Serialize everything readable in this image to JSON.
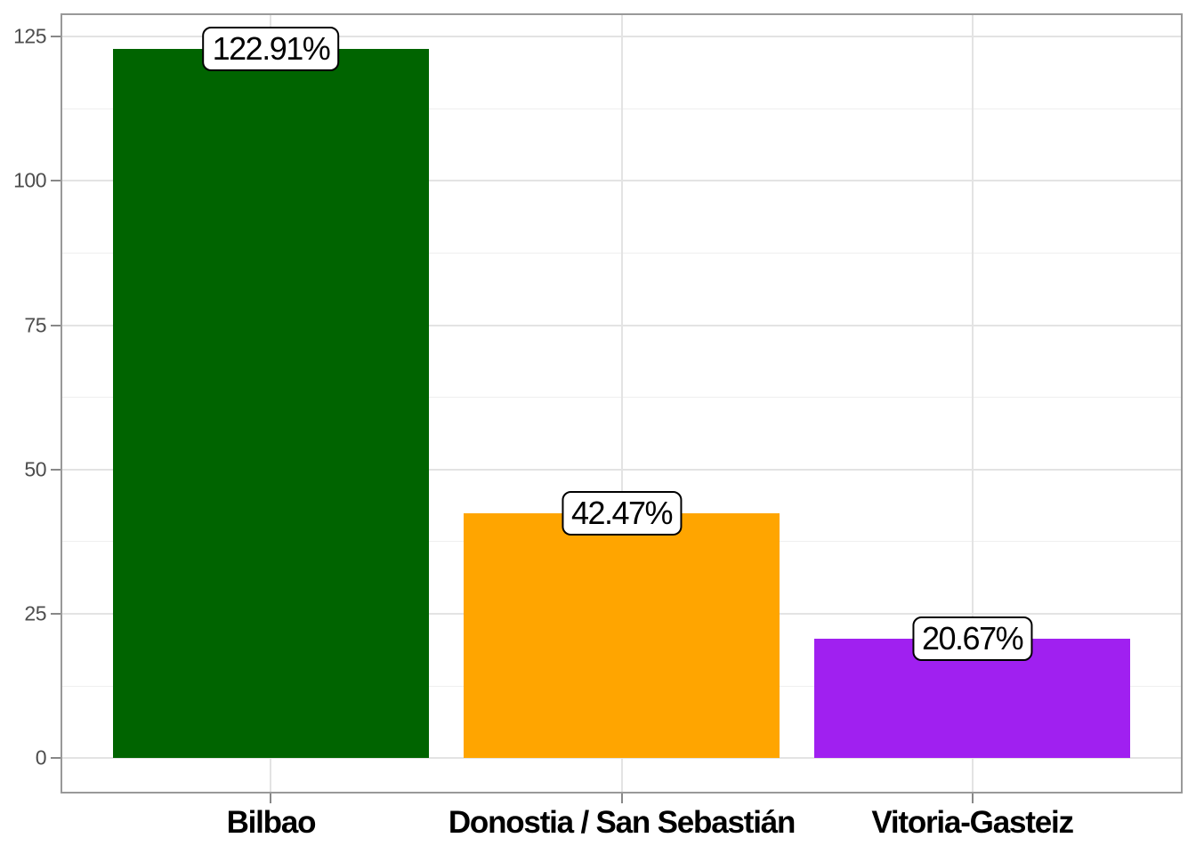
{
  "chart_data": {
    "type": "bar",
    "title": "",
    "xlabel": "",
    "ylabel": "",
    "categories": [
      "Bilbao",
      "Donostia / San Sebastián",
      "Vitoria-Gasteiz"
    ],
    "values": [
      122.91,
      42.47,
      20.67
    ],
    "value_labels": [
      "122.91%",
      "42.47%",
      "20.67%"
    ],
    "bar_colors": [
      "#006400",
      "#FFA500",
      "#A020F0"
    ],
    "bar_width_fraction": 0.9,
    "x_edge_expansion": 0.6,
    "ylim": [
      -6.15,
      129.06
    ],
    "y_major_ticks": [
      0,
      25,
      50,
      75,
      100,
      125
    ],
    "y_major_tick_labels": [
      "0",
      "25",
      "50",
      "75",
      "100",
      "125"
    ],
    "y_minor_ticks": [
      12.5,
      37.5,
      62.5,
      87.5,
      112.5
    ],
    "grid": "major and minor horizontal, major vertical at category centers",
    "legend": "none",
    "style": {
      "background_color": "#FFFFFF",
      "panel_border_color": "#999999",
      "grid_major_color": "#E3E3E3",
      "grid_minor_color": "#EFEFEF",
      "tick_mark_color": "#888888",
      "y_tick_label_color": "#4D4D4D",
      "x_label_color": "#000000",
      "value_label_text_color": "#000000",
      "value_label_bg_color": "#FFFFFF",
      "value_label_border_color": "#000000"
    }
  }
}
